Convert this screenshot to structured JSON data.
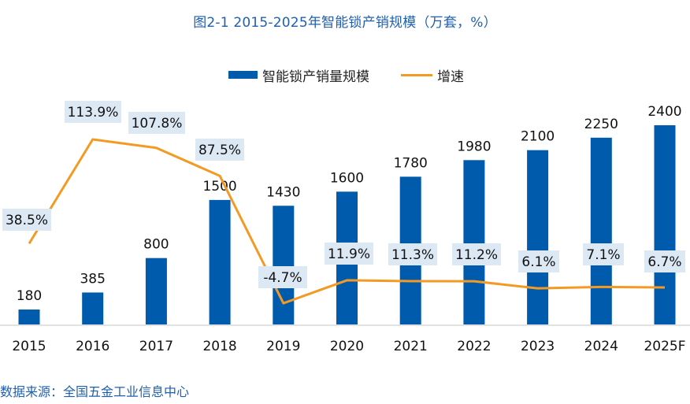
{
  "title": "图2-1 2015-2025年智能锁产销规模（万套，%）",
  "legend": {
    "bar_label": "智能锁产销量规模",
    "line_label": "增速"
  },
  "source": "数据来源：全国五金工业信息中心",
  "colors": {
    "bar": "#005bac",
    "line": "#f39a24",
    "label_box": "#dde8f5",
    "title": "#1f5fb0"
  },
  "chart_data": {
    "type": "bar+line",
    "title": "图2-1 2015-2025年智能锁产销规模（万套，%）",
    "categories": [
      "2015",
      "2016",
      "2017",
      "2018",
      "2019",
      "2020",
      "2021",
      "2022",
      "2023",
      "2024",
      "2025F"
    ],
    "series": [
      {
        "name": "智能锁产销量规模",
        "type": "bar",
        "unit": "万套",
        "values": [
          180,
          385,
          800,
          1500,
          1430,
          1600,
          1780,
          1980,
          2100,
          2250,
          2400
        ],
        "labels": [
          "180",
          "385",
          "800",
          "1500",
          "1430",
          "1600",
          "1780",
          "1980",
          "2100",
          "2250",
          "2400"
        ]
      },
      {
        "name": "增速",
        "type": "line",
        "unit": "%",
        "values": [
          38.5,
          113.9,
          107.8,
          87.5,
          -4.7,
          11.9,
          11.3,
          11.2,
          6.1,
          7.1,
          6.7
        ],
        "labels": [
          "38.5%",
          "113.9%",
          "107.8%",
          "87.5%",
          "-4.7%",
          "11.9%",
          "11.3%",
          "11.2%",
          "6.1%",
          "7.1%",
          "6.7%"
        ]
      }
    ],
    "xlabel": "",
    "ylabel": "",
    "y_axis_visible": false,
    "grid": false,
    "legend_position": "top-center"
  }
}
